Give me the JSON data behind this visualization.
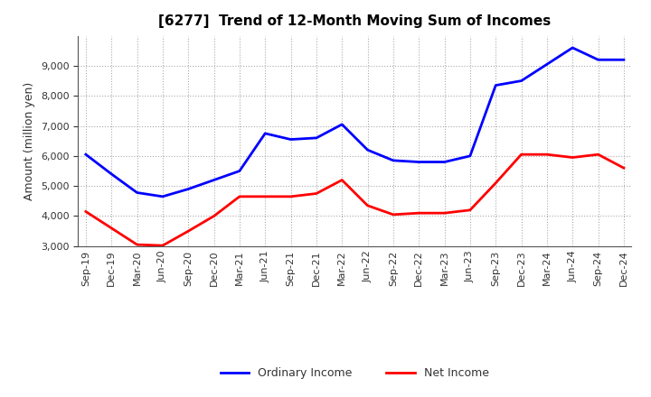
{
  "title": "[6277]  Trend of 12-Month Moving Sum of Incomes",
  "ylabel": "Amount (million yen)",
  "x_labels": [
    "Sep-19",
    "Dec-19",
    "Mar-20",
    "Jun-20",
    "Sep-20",
    "Dec-20",
    "Mar-21",
    "Jun-21",
    "Sep-21",
    "Dec-21",
    "Mar-22",
    "Jun-22",
    "Sep-22",
    "Dec-22",
    "Mar-23",
    "Jun-23",
    "Sep-23",
    "Dec-23",
    "Mar-24",
    "Jun-24",
    "Sep-24",
    "Dec-24"
  ],
  "ordinary_income": [
    6050,
    5400,
    4780,
    4650,
    4900,
    5200,
    5500,
    6750,
    6550,
    6600,
    7050,
    6200,
    5850,
    5800,
    5800,
    6000,
    8350,
    8500,
    9050,
    9600,
    9200,
    9200
  ],
  "net_income": [
    4150,
    3600,
    3050,
    3020,
    3500,
    4000,
    4650,
    4650,
    4650,
    4750,
    5200,
    4350,
    4050,
    4100,
    4100,
    4200,
    5100,
    6050,
    6050,
    5950,
    6050,
    5600
  ],
  "ordinary_color": "#0000FF",
  "net_color": "#FF0000",
  "ylim": [
    3000,
    10000
  ],
  "yticks": [
    3000,
    4000,
    5000,
    6000,
    7000,
    8000,
    9000
  ],
  "background_color": "#FFFFFF",
  "grid_color": "#AAAAAA",
  "legend_ordinary": "Ordinary Income",
  "legend_net": "Net Income",
  "title_fontsize": 11,
  "ylabel_fontsize": 9,
  "tick_fontsize": 8,
  "line_width": 2.0
}
